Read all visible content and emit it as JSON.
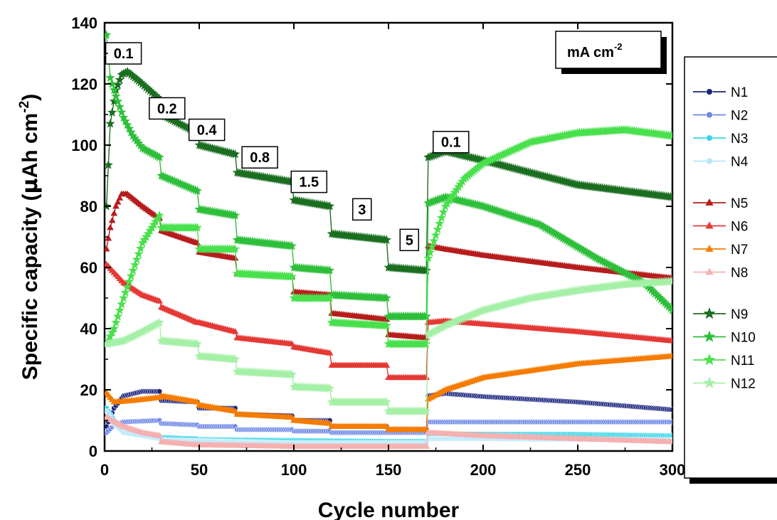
{
  "chart_data": {
    "type": "scatter",
    "xlabel": "Cycle number",
    "ylabel_parts": [
      "Specific capacity (",
      "μ",
      "Ah cm",
      "-2",
      ")"
    ],
    "xlim": [
      0,
      300
    ],
    "ylim": [
      0,
      140
    ],
    "xticks": [
      0,
      50,
      100,
      150,
      200,
      250,
      300
    ],
    "yticks": [
      0,
      20,
      40,
      60,
      80,
      100,
      120,
      140
    ],
    "unit_box": {
      "text": "mA cm",
      "sup": "-2"
    },
    "rate_labels": [
      {
        "text": "0.1",
        "x": 10,
        "y": 130
      },
      {
        "text": "0.2",
        "x": 33,
        "y": 112
      },
      {
        "text": "0.4",
        "x": 54,
        "y": 105
      },
      {
        "text": "0.8",
        "x": 82,
        "y": 96
      },
      {
        "text": "1.5",
        "x": 108,
        "y": 88
      },
      {
        "text": "3",
        "x": 136,
        "y": 79
      },
      {
        "text": "5",
        "x": 161,
        "y": 69
      },
      {
        "text": "0.1",
        "x": 183,
        "y": 101
      }
    ],
    "legend_position": "right",
    "series": [
      {
        "name": "N1",
        "color": "#1a237e",
        "marker": "circle",
        "points": [
          [
            1,
            8
          ],
          [
            5,
            14
          ],
          [
            10,
            18
          ],
          [
            20,
            19.5
          ],
          [
            29,
            19.5
          ],
          [
            30,
            16.5
          ],
          [
            49,
            16
          ],
          [
            50,
            14
          ],
          [
            69,
            14
          ],
          [
            70,
            12
          ],
          [
            99,
            11.5
          ],
          [
            100,
            10
          ],
          [
            119,
            10
          ],
          [
            120,
            8
          ],
          [
            149,
            8
          ],
          [
            150,
            7
          ],
          [
            170,
            7
          ],
          [
            171,
            18
          ],
          [
            180,
            18.8
          ],
          [
            200,
            17.8
          ],
          [
            250,
            16
          ],
          [
            300,
            13.5
          ]
        ]
      },
      {
        "name": "N2",
        "color": "#6c86e6",
        "marker": "circle",
        "points": [
          [
            1,
            6
          ],
          [
            5,
            8.5
          ],
          [
            10,
            9.5
          ],
          [
            29,
            10
          ],
          [
            30,
            9
          ],
          [
            49,
            8.5
          ],
          [
            50,
            8
          ],
          [
            69,
            8
          ],
          [
            70,
            7
          ],
          [
            99,
            7
          ],
          [
            100,
            6.5
          ],
          [
            119,
            6.5
          ],
          [
            120,
            6
          ],
          [
            149,
            6
          ],
          [
            150,
            6
          ],
          [
            170,
            6
          ],
          [
            171,
            9.5
          ],
          [
            200,
            9.5
          ],
          [
            250,
            9.5
          ],
          [
            300,
            9.5
          ]
        ]
      },
      {
        "name": "N3",
        "color": "#33d6e8",
        "marker": "circle",
        "points": [
          [
            1,
            14
          ],
          [
            5,
            10
          ],
          [
            10,
            7
          ],
          [
            29,
            5
          ],
          [
            30,
            4.5
          ],
          [
            49,
            4
          ],
          [
            50,
            3.8
          ],
          [
            99,
            3.5
          ],
          [
            100,
            3.5
          ],
          [
            149,
            3.2
          ],
          [
            150,
            3.2
          ],
          [
            170,
            3.2
          ],
          [
            171,
            5.5
          ],
          [
            200,
            5.5
          ],
          [
            250,
            5.5
          ],
          [
            300,
            5
          ]
        ]
      },
      {
        "name": "N4",
        "color": "#b3e5fc",
        "marker": "circle",
        "points": [
          [
            1,
            13
          ],
          [
            5,
            9
          ],
          [
            10,
            6
          ],
          [
            29,
            4
          ],
          [
            30,
            3.5
          ],
          [
            99,
            2.5
          ],
          [
            100,
            2.5
          ],
          [
            170,
            2.5
          ],
          [
            171,
            4
          ],
          [
            200,
            4
          ],
          [
            300,
            3.5
          ]
        ]
      },
      {
        "name": "N5",
        "color": "#b71c1c",
        "marker": "triangle",
        "points": [
          [
            1,
            66
          ],
          [
            3,
            73
          ],
          [
            6,
            80
          ],
          [
            9,
            84
          ],
          [
            12,
            84
          ],
          [
            20,
            80
          ],
          [
            29,
            76
          ],
          [
            30,
            72
          ],
          [
            49,
            68
          ],
          [
            50,
            65
          ],
          [
            69,
            63
          ],
          [
            70,
            58
          ],
          [
            99,
            57
          ],
          [
            100,
            52
          ],
          [
            119,
            51
          ],
          [
            120,
            45
          ],
          [
            149,
            43
          ],
          [
            150,
            38
          ],
          [
            170,
            37
          ],
          [
            171,
            67
          ],
          [
            180,
            66
          ],
          [
            200,
            64
          ],
          [
            250,
            60
          ],
          [
            300,
            56.5
          ]
        ]
      },
      {
        "name": "N6",
        "color": "#e53935",
        "marker": "triangle",
        "points": [
          [
            1,
            61
          ],
          [
            10,
            55
          ],
          [
            20,
            51
          ],
          [
            29,
            49
          ],
          [
            30,
            47
          ],
          [
            49,
            42
          ],
          [
            50,
            42
          ],
          [
            69,
            39
          ],
          [
            70,
            37
          ],
          [
            99,
            35
          ],
          [
            100,
            34
          ],
          [
            119,
            32
          ],
          [
            120,
            28
          ],
          [
            149,
            28
          ],
          [
            150,
            24
          ],
          [
            170,
            24
          ],
          [
            171,
            42
          ],
          [
            180,
            42.5
          ],
          [
            200,
            41.5
          ],
          [
            250,
            39
          ],
          [
            300,
            36
          ]
        ]
      },
      {
        "name": "N7",
        "color": "#f57c00",
        "marker": "triangle",
        "points": [
          [
            1,
            19
          ],
          [
            5,
            16
          ],
          [
            15,
            16.5
          ],
          [
            29,
            17.5
          ],
          [
            30,
            18
          ],
          [
            49,
            16
          ],
          [
            50,
            15
          ],
          [
            69,
            13
          ],
          [
            70,
            12
          ],
          [
            99,
            11
          ],
          [
            100,
            10
          ],
          [
            119,
            9
          ],
          [
            120,
            8
          ],
          [
            149,
            8
          ],
          [
            150,
            7
          ],
          [
            170,
            7
          ],
          [
            171,
            17
          ],
          [
            180,
            20
          ],
          [
            200,
            24
          ],
          [
            250,
            28.5
          ],
          [
            300,
            31
          ]
        ]
      },
      {
        "name": "N8",
        "color": "#f5b0b0",
        "marker": "triangle",
        "points": [
          [
            1,
            11
          ],
          [
            10,
            8
          ],
          [
            20,
            6
          ],
          [
            29,
            5
          ],
          [
            30,
            3
          ],
          [
            49,
            2
          ],
          [
            50,
            2
          ],
          [
            99,
            1.5
          ],
          [
            100,
            1.5
          ],
          [
            170,
            1.5
          ],
          [
            171,
            6
          ],
          [
            200,
            5
          ],
          [
            250,
            4
          ],
          [
            300,
            3
          ]
        ]
      },
      {
        "name": "N9",
        "color": "#1b6e20",
        "marker": "star",
        "points": [
          [
            1,
            80
          ],
          [
            3,
            107
          ],
          [
            6,
            118
          ],
          [
            9,
            123
          ],
          [
            12,
            124
          ],
          [
            18,
            121
          ],
          [
            29,
            115
          ],
          [
            30,
            110
          ],
          [
            49,
            104
          ],
          [
            50,
            100
          ],
          [
            69,
            97
          ],
          [
            70,
            91
          ],
          [
            99,
            88
          ],
          [
            100,
            82
          ],
          [
            119,
            80
          ],
          [
            120,
            71
          ],
          [
            149,
            69
          ],
          [
            150,
            60
          ],
          [
            170,
            59
          ],
          [
            171,
            96
          ],
          [
            180,
            98
          ],
          [
            200,
            95
          ],
          [
            250,
            87
          ],
          [
            300,
            83
          ]
        ]
      },
      {
        "name": "N10",
        "color": "#2ebf3a",
        "marker": "star",
        "points": [
          [
            1,
            136
          ],
          [
            3,
            122
          ],
          [
            6,
            116
          ],
          [
            10,
            109
          ],
          [
            15,
            103
          ],
          [
            20,
            99
          ],
          [
            29,
            96
          ],
          [
            30,
            90
          ],
          [
            49,
            85
          ],
          [
            50,
            79
          ],
          [
            69,
            77
          ],
          [
            70,
            69
          ],
          [
            99,
            67
          ],
          [
            100,
            60
          ],
          [
            119,
            59
          ],
          [
            120,
            51
          ],
          [
            149,
            50
          ],
          [
            150,
            44
          ],
          [
            170,
            44
          ],
          [
            171,
            81
          ],
          [
            180,
            83
          ],
          [
            200,
            80
          ],
          [
            230,
            74
          ],
          [
            260,
            63
          ],
          [
            285,
            55
          ],
          [
            300,
            46
          ]
        ]
      },
      {
        "name": "N11",
        "color": "#49e04d",
        "marker": "star",
        "points": [
          [
            1,
            35
          ],
          [
            5,
            40
          ],
          [
            10,
            50
          ],
          [
            15,
            59
          ],
          [
            20,
            68
          ],
          [
            25,
            73
          ],
          [
            29,
            77
          ],
          [
            30,
            73
          ],
          [
            40,
            73
          ],
          [
            49,
            73
          ],
          [
            50,
            66
          ],
          [
            69,
            66
          ],
          [
            70,
            58
          ],
          [
            99,
            57
          ],
          [
            100,
            50
          ],
          [
            119,
            50
          ],
          [
            120,
            42
          ],
          [
            149,
            41
          ],
          [
            150,
            35
          ],
          [
            170,
            35
          ],
          [
            171,
            63
          ],
          [
            180,
            80
          ],
          [
            190,
            89
          ],
          [
            200,
            94
          ],
          [
            225,
            101
          ],
          [
            250,
            104
          ],
          [
            275,
            105
          ],
          [
            300,
            103
          ]
        ]
      },
      {
        "name": "N12",
        "color": "#a5f0a7",
        "marker": "star",
        "points": [
          [
            1,
            35
          ],
          [
            10,
            36
          ],
          [
            20,
            39
          ],
          [
            29,
            42
          ],
          [
            30,
            36
          ],
          [
            49,
            35
          ],
          [
            50,
            31
          ],
          [
            69,
            30
          ],
          [
            70,
            26
          ],
          [
            99,
            25
          ],
          [
            100,
            21
          ],
          [
            119,
            20.5
          ],
          [
            120,
            16
          ],
          [
            149,
            16
          ],
          [
            150,
            13
          ],
          [
            170,
            13
          ],
          [
            171,
            38
          ],
          [
            180,
            41
          ],
          [
            200,
            46
          ],
          [
            225,
            50
          ],
          [
            250,
            52.5
          ],
          [
            275,
            54.5
          ],
          [
            300,
            55.5
          ]
        ]
      }
    ]
  }
}
